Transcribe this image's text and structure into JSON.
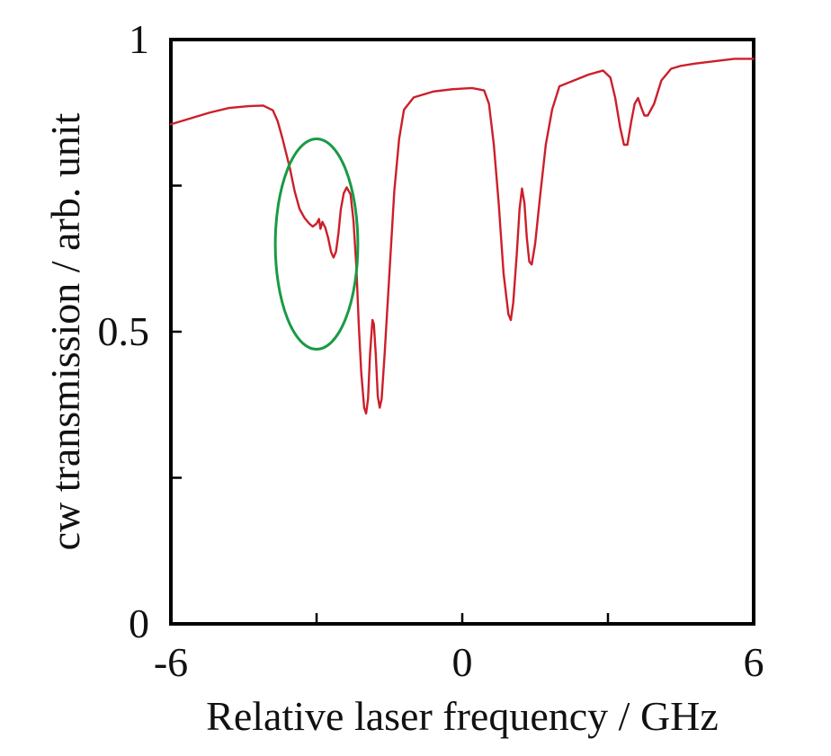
{
  "chart_data": {
    "type": "line",
    "title": "",
    "xlabel": "Relative laser frequency / GHz",
    "ylabel": "cw transmission / arb. unit",
    "xlim": [
      -6,
      6
    ],
    "ylim": [
      0,
      1
    ],
    "x_major_ticks": [
      -6,
      0,
      6
    ],
    "x_minor_ticks": [
      -3,
      3
    ],
    "x_tick_labels": [
      "-6",
      "0",
      "6"
    ],
    "y_major_ticks": [
      0,
      0.5,
      1
    ],
    "y_minor_ticks": [
      0.25,
      0.75
    ],
    "y_tick_labels": [
      "0",
      "0.5",
      "1"
    ],
    "grid": false,
    "legend": "none",
    "series": [
      {
        "color": "#cc1f2a",
        "points": [
          [
            -6.0,
            0.855
          ],
          [
            -5.6,
            0.865
          ],
          [
            -5.2,
            0.875
          ],
          [
            -4.8,
            0.883
          ],
          [
            -4.4,
            0.886
          ],
          [
            -4.1,
            0.887
          ],
          [
            -3.9,
            0.879
          ],
          [
            -3.8,
            0.86
          ],
          [
            -3.7,
            0.83
          ],
          [
            -3.55,
            0.78
          ],
          [
            -3.45,
            0.74
          ],
          [
            -3.35,
            0.71
          ],
          [
            -3.25,
            0.695
          ],
          [
            -3.15,
            0.685
          ],
          [
            -3.08,
            0.68
          ],
          [
            -3.0,
            0.685
          ],
          [
            -2.95,
            0.693
          ],
          [
            -2.92,
            0.676
          ],
          [
            -2.88,
            0.688
          ],
          [
            -2.82,
            0.678
          ],
          [
            -2.76,
            0.66
          ],
          [
            -2.7,
            0.636
          ],
          [
            -2.65,
            0.627
          ],
          [
            -2.6,
            0.637
          ],
          [
            -2.55,
            0.668
          ],
          [
            -2.5,
            0.71
          ],
          [
            -2.44,
            0.737
          ],
          [
            -2.38,
            0.747
          ],
          [
            -2.3,
            0.735
          ],
          [
            -2.24,
            0.69
          ],
          [
            -2.18,
            0.61
          ],
          [
            -2.13,
            0.51
          ],
          [
            -2.08,
            0.43
          ],
          [
            -2.02,
            0.37
          ],
          [
            -1.98,
            0.36
          ],
          [
            -1.94,
            0.385
          ],
          [
            -1.9,
            0.46
          ],
          [
            -1.85,
            0.52
          ],
          [
            -1.82,
            0.513
          ],
          [
            -1.78,
            0.46
          ],
          [
            -1.74,
            0.39
          ],
          [
            -1.7,
            0.37
          ],
          [
            -1.66,
            0.385
          ],
          [
            -1.6,
            0.46
          ],
          [
            -1.5,
            0.6
          ],
          [
            -1.4,
            0.74
          ],
          [
            -1.3,
            0.83
          ],
          [
            -1.2,
            0.88
          ],
          [
            -1.0,
            0.901
          ],
          [
            -0.6,
            0.911
          ],
          [
            -0.2,
            0.915
          ],
          [
            0.2,
            0.917
          ],
          [
            0.45,
            0.913
          ],
          [
            0.55,
            0.89
          ],
          [
            0.65,
            0.82
          ],
          [
            0.75,
            0.72
          ],
          [
            0.85,
            0.6
          ],
          [
            0.95,
            0.53
          ],
          [
            1.0,
            0.52
          ],
          [
            1.05,
            0.55
          ],
          [
            1.12,
            0.63
          ],
          [
            1.18,
            0.71
          ],
          [
            1.23,
            0.745
          ],
          [
            1.28,
            0.72
          ],
          [
            1.33,
            0.66
          ],
          [
            1.38,
            0.62
          ],
          [
            1.43,
            0.615
          ],
          [
            1.5,
            0.65
          ],
          [
            1.6,
            0.73
          ],
          [
            1.72,
            0.82
          ],
          [
            1.85,
            0.88
          ],
          [
            2.0,
            0.92
          ],
          [
            2.3,
            0.93
          ],
          [
            2.6,
            0.94
          ],
          [
            2.9,
            0.947
          ],
          [
            3.05,
            0.935
          ],
          [
            3.15,
            0.9
          ],
          [
            3.25,
            0.85
          ],
          [
            3.33,
            0.82
          ],
          [
            3.4,
            0.82
          ],
          [
            3.48,
            0.86
          ],
          [
            3.55,
            0.89
          ],
          [
            3.62,
            0.9
          ],
          [
            3.68,
            0.885
          ],
          [
            3.75,
            0.87
          ],
          [
            3.82,
            0.87
          ],
          [
            3.95,
            0.89
          ],
          [
            4.1,
            0.93
          ],
          [
            4.3,
            0.95
          ],
          [
            4.5,
            0.955
          ],
          [
            4.8,
            0.959
          ],
          [
            5.2,
            0.963
          ],
          [
            5.6,
            0.967
          ],
          [
            6.0,
            0.967
          ]
        ]
      }
    ],
    "annotations": [
      {
        "type": "ellipse",
        "color": "#1a9a45",
        "center": [
          -3.0,
          0.65
        ],
        "x_radius": 0.85,
        "y_radius": 0.18
      }
    ]
  }
}
